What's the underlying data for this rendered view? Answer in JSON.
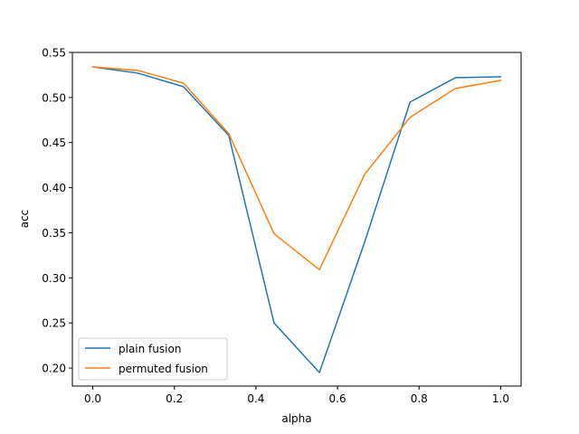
{
  "chart_data": {
    "type": "line",
    "title": "",
    "xlabel": "alpha",
    "ylabel": "acc",
    "xlim": [
      -0.05,
      1.05
    ],
    "ylim": [
      0.18,
      0.55
    ],
    "xticks": [
      0.0,
      0.2,
      0.4,
      0.6,
      0.8,
      1.0
    ],
    "xtick_labels": [
      "0.0",
      "0.2",
      "0.4",
      "0.6",
      "0.8",
      "1.0"
    ],
    "yticks": [
      0.2,
      0.25,
      0.3,
      0.35,
      0.4,
      0.45,
      0.5,
      0.55
    ],
    "ytick_labels": [
      "0.20",
      "0.25",
      "0.30",
      "0.35",
      "0.40",
      "0.45",
      "0.50",
      "0.55"
    ],
    "grid": false,
    "legend_position": "lower-left",
    "x": [
      0.0,
      0.1111,
      0.2222,
      0.3333,
      0.4444,
      0.5556,
      0.6667,
      0.7778,
      0.8889,
      1.0
    ],
    "series": [
      {
        "name": "plain fusion",
        "color": "#1f77b4",
        "values": [
          0.534,
          0.527,
          0.512,
          0.458,
          0.25,
          0.195,
          0.34,
          0.495,
          0.522,
          0.523
        ]
      },
      {
        "name": "permuted fusion",
        "color": "#ff7f0e",
        "values": [
          0.534,
          0.53,
          0.516,
          0.46,
          0.349,
          0.309,
          0.415,
          0.478,
          0.51,
          0.519
        ]
      }
    ]
  }
}
